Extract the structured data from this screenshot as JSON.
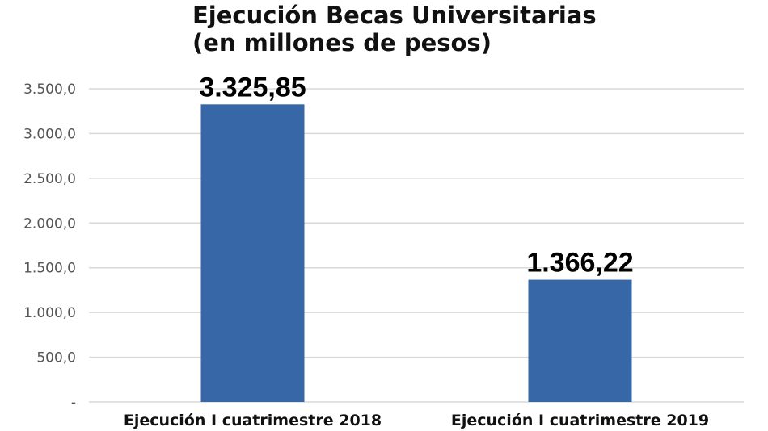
{
  "chart_data": {
    "type": "bar",
    "title_line1": "Ejecución Becas Universitarias",
    "title_line2": "(en millones de pesos)",
    "categories": [
      "Ejecución I cuatrimestre 2018",
      "Ejecución I cuatrimestre 2019"
    ],
    "values": [
      3325.85,
      1366.22
    ],
    "data_labels": [
      "3.325,85",
      "1.366,22"
    ],
    "xlabel": "",
    "ylabel": "",
    "ylim": [
      0,
      3500
    ],
    "yticks": [
      0,
      500,
      1000,
      1500,
      2000,
      2500,
      3000,
      3500
    ],
    "ytick_labels": [
      "-",
      "500,0",
      "1.000,0",
      "1.500,0",
      "2.000,0",
      "2.500,0",
      "3.000,0",
      "3.500,0"
    ],
    "grid": true,
    "legend": "none",
    "bar_color": "#3767A6",
    "grid_color": "#D9D9D9"
  }
}
